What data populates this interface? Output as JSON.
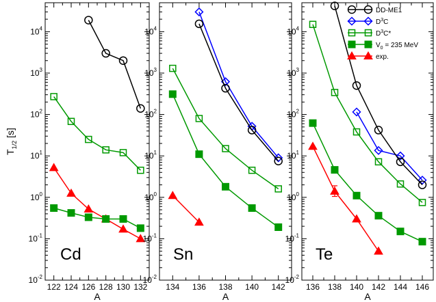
{
  "chart_data": {
    "type": "line",
    "yscale": "log",
    "ylabel": "T1/2 [s]",
    "ylabel_parts": {
      "main": "T",
      "sub": "1/2",
      "unit": " [s]"
    },
    "ylim": [
      0.01,
      50000
    ],
    "ytick_labels": [
      {
        "base": "10",
        "exp": "-2",
        "value": 0.01
      },
      {
        "base": "10",
        "exp": "-1",
        "value": 0.1
      },
      {
        "base": "10",
        "exp": "0",
        "value": 1
      },
      {
        "base": "10",
        "exp": "1",
        "value": 10
      },
      {
        "base": "10",
        "exp": "2",
        "value": 100
      },
      {
        "base": "10",
        "exp": "3",
        "value": 1000
      },
      {
        "base": "10",
        "exp": "4",
        "value": 10000
      }
    ],
    "legend": [
      {
        "key": "ddme1",
        "label": "DD-ME1",
        "color": "#000000",
        "marker": "open-circle"
      },
      {
        "key": "d3c",
        "label": "D3C",
        "label_base": "D",
        "label_sup": "3",
        "label_tail": "C",
        "color": "#0000ff",
        "marker": "open-diamond"
      },
      {
        "key": "d3cstar",
        "label": "D3C*",
        "label_base": "D",
        "label_sup": "3",
        "label_tail": "C*",
        "color": "#009900",
        "marker": "open-square"
      },
      {
        "key": "v0",
        "label": "V0 = 235 MeV",
        "label_base": "V",
        "label_sub": "0",
        "label_tail": " = 235 MeV",
        "color": "#009900",
        "marker": "filled-square"
      },
      {
        "key": "exp",
        "label": "exp.",
        "color": "#ff0000",
        "marker": "filled-triangle"
      }
    ],
    "panels": [
      {
        "name": "Cd",
        "xlabel": "A",
        "xlim": [
          121,
          133
        ],
        "xticks": [
          122,
          124,
          126,
          128,
          130,
          132
        ],
        "series": [
          {
            "key": "ddme1",
            "x": [
              126,
              128,
              130,
              132
            ],
            "y": [
              19000,
              3000,
              2000,
              140
            ]
          },
          {
            "key": "d3cstar",
            "x": [
              122,
              124,
              126,
              128,
              130,
              132
            ],
            "y": [
              270,
              68,
              25,
              14,
              12,
              4.5
            ]
          },
          {
            "key": "v0",
            "x": [
              122,
              124,
              126,
              128,
              130,
              132
            ],
            "y": [
              0.55,
              0.42,
              0.33,
              0.3,
              0.3,
              0.18
            ]
          },
          {
            "key": "exp",
            "x": [
              122,
              124,
              126,
              128,
              130,
              132
            ],
            "y": [
              5.2,
              1.25,
              0.52,
              0.3,
              0.17,
              0.1
            ]
          }
        ]
      },
      {
        "name": "Sn",
        "xlabel": "A",
        "xlim": [
          133,
          143
        ],
        "xticks": [
          134,
          136,
          138,
          140,
          142
        ],
        "series": [
          {
            "key": "ddme1",
            "x": [
              136,
              138,
              140,
              142
            ],
            "y": [
              15500,
              430,
              42,
              7.5
            ]
          },
          {
            "key": "d3c",
            "x": [
              136,
              138,
              140,
              142
            ],
            "y": [
              30000,
              620,
              52,
              9.0
            ]
          },
          {
            "key": "d3cstar",
            "x": [
              134,
              136,
              138,
              140,
              142
            ],
            "y": [
              1300,
              80,
              15,
              4.5,
              1.6
            ]
          },
          {
            "key": "v0",
            "x": [
              134,
              136,
              138,
              140,
              142
            ],
            "y": [
              310,
              11,
              1.8,
              0.55,
              0.19
            ]
          },
          {
            "key": "exp",
            "x": [
              134,
              136
            ],
            "y": [
              1.1,
              0.25
            ]
          }
        ]
      },
      {
        "name": "Te",
        "xlabel": "A",
        "xlim": [
          135,
          147
        ],
        "xticks": [
          136,
          138,
          140,
          142,
          144,
          146
        ],
        "series": [
          {
            "key": "ddme1",
            "x": [
              138,
              140,
              142,
              144,
              146
            ],
            "y": [
              42000,
              500,
              42,
              7.2,
              2.0
            ]
          },
          {
            "key": "d3c",
            "x": [
              140,
              142,
              144,
              146
            ],
            "y": [
              115,
              13.5,
              10.0,
              2.6
            ]
          },
          {
            "key": "d3cstar",
            "x": [
              136,
              138,
              140,
              142,
              144,
              146
            ],
            "y": [
              15000,
              340,
              38,
              7.2,
              2.1,
              0.75
            ]
          },
          {
            "key": "v0",
            "x": [
              136,
              138,
              140,
              142,
              144,
              146
            ],
            "y": [
              62,
              4.6,
              1.1,
              0.36,
              0.15,
              0.085
            ]
          },
          {
            "key": "exp",
            "x": [
              136,
              138,
              140,
              142
            ],
            "y": [
              17,
              1.4,
              0.3,
              0.05
            ]
          }
        ]
      }
    ]
  }
}
